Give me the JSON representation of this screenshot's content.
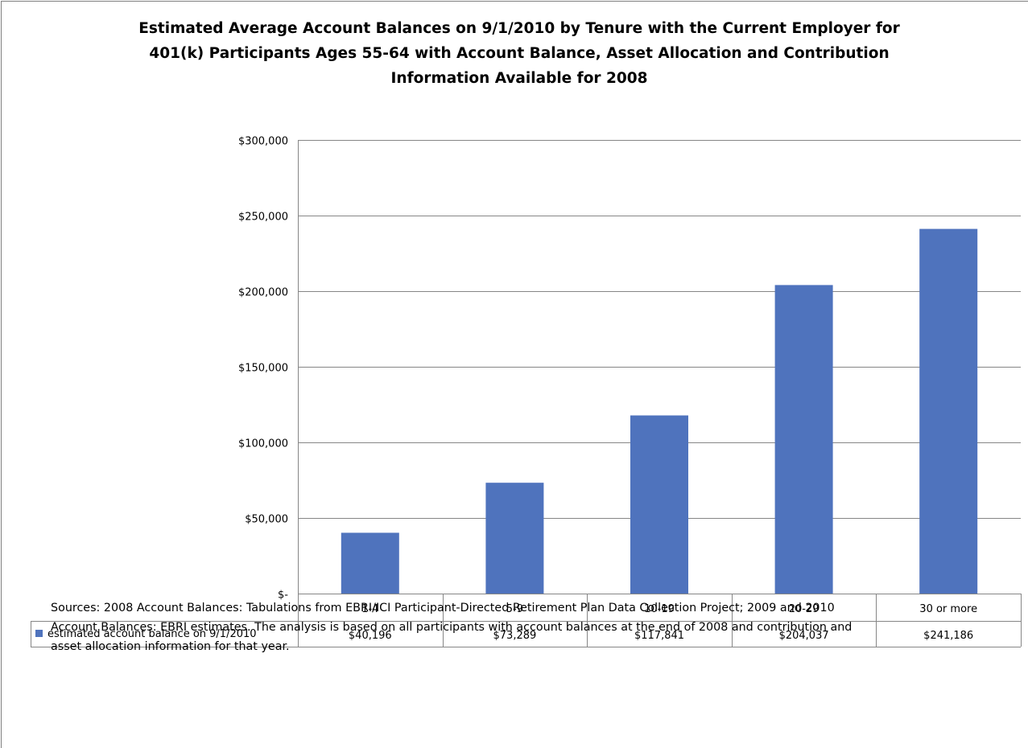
{
  "title_lines": [
    "Estimated Average Account Balances on 9/1/2010 by Tenure with the Current Employer for",
    "401(k) Participants Ages 55-64 with Account Balance, Asset Allocation and Contribution",
    "Information Available for 2008"
  ],
  "sources_lines": [
    "Sources: 2008 Account Balances: Tabulations from EBRI/ICI Participant-Directed Retirement Plan Data Collection Project; 2009 and 2010",
    "Account Balances: EBRI estimates. The analysis is based on all participants with account balances at the end of 2008 and contribution and",
    "asset allocation information for that year."
  ],
  "colors": {
    "bar": "#4f73bd",
    "grid": "#868686",
    "table_border": "#868686"
  },
  "chart_data": {
    "type": "bar",
    "title": "Estimated Average Account Balances on 9/1/2010 by Tenure with the Current Employer for 401(k) Participants Ages 55-64 with Account Balance, Asset Allocation and Contribution Information Available for 2008",
    "categories": [
      "1-4",
      "5-9",
      "10-19",
      "20-29",
      "30 or more"
    ],
    "series": [
      {
        "name": "estimated account balance on 9/1/2010",
        "values": [
          40196,
          73289,
          117841,
          204037,
          241186
        ],
        "labels": [
          "$40,196",
          "$73,289",
          "$117,841",
          "$204,037",
          "$241,186"
        ]
      }
    ],
    "yticks": [
      0,
      50000,
      100000,
      150000,
      200000,
      250000,
      300000
    ],
    "ytick_labels": [
      "$-",
      "$50,000",
      "$100,000",
      "$150,000",
      "$200,000",
      "$250,000",
      "$300,000"
    ],
    "ylim": [
      0,
      300000
    ],
    "grid": true,
    "legend": "data-table-row",
    "xlabel": "",
    "ylabel": ""
  }
}
